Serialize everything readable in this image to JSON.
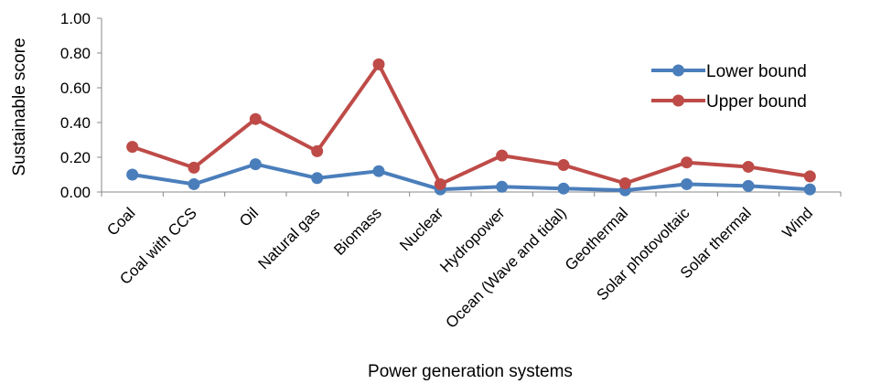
{
  "chart_data": {
    "type": "line",
    "title": "",
    "xlabel": "Power generation systems",
    "ylabel": "Sustainable score",
    "ylim": [
      0,
      1
    ],
    "y_ticks": [
      "0.00",
      "0.20",
      "0.40",
      "0.60",
      "0.80",
      "1.00"
    ],
    "categories": [
      "Coal",
      "Coal with CCS",
      "Oil",
      "Natural gas",
      "Biomass",
      "Nuclear",
      "Hydropower",
      "Ocean (Wave and tidal)",
      "Geothermal",
      "Solar photovoltaic",
      "Solar thermal",
      "Wind"
    ],
    "series": [
      {
        "name": "Lower bound",
        "color": "#4a7ebb",
        "values": [
          0.1,
          0.045,
          0.16,
          0.08,
          0.12,
          0.015,
          0.03,
          0.02,
          0.01,
          0.045,
          0.035,
          0.015
        ]
      },
      {
        "name": "Upper bound",
        "color": "#be4b48",
        "values": [
          0.26,
          0.14,
          0.42,
          0.235,
          0.735,
          0.045,
          0.21,
          0.155,
          0.05,
          0.17,
          0.145,
          0.09
        ]
      }
    ],
    "grid": false,
    "legend_position": "top-right"
  }
}
